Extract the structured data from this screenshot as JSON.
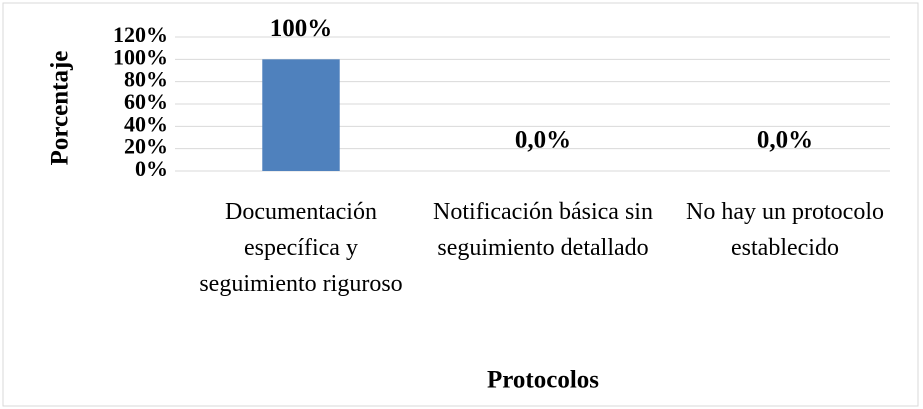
{
  "chart_data": {
    "type": "bar",
    "categories": [
      "Documentación específica y seguimiento riguroso",
      "Notificación básica sin seguimiento detallado",
      "No hay un protocolo establecido"
    ],
    "values": [
      100,
      0,
      0
    ],
    "value_labels": [
      "100%",
      "0,0%",
      "0,0%"
    ],
    "color": "#4f81bd",
    "x_label": "Protocolos",
    "y_label": "Porcentaje",
    "ylim": [
      0,
      120
    ],
    "yticks": [
      {
        "value": 0,
        "label": "0%"
      },
      {
        "value": 20,
        "label": "20%"
      },
      {
        "value": 40,
        "label": "40%"
      },
      {
        "value": 60,
        "label": "60%"
      },
      {
        "value": 80,
        "label": "80%"
      },
      {
        "value": 100,
        "label": "100%"
      },
      {
        "value": 120,
        "label": "120%"
      }
    ],
    "grid": true
  }
}
